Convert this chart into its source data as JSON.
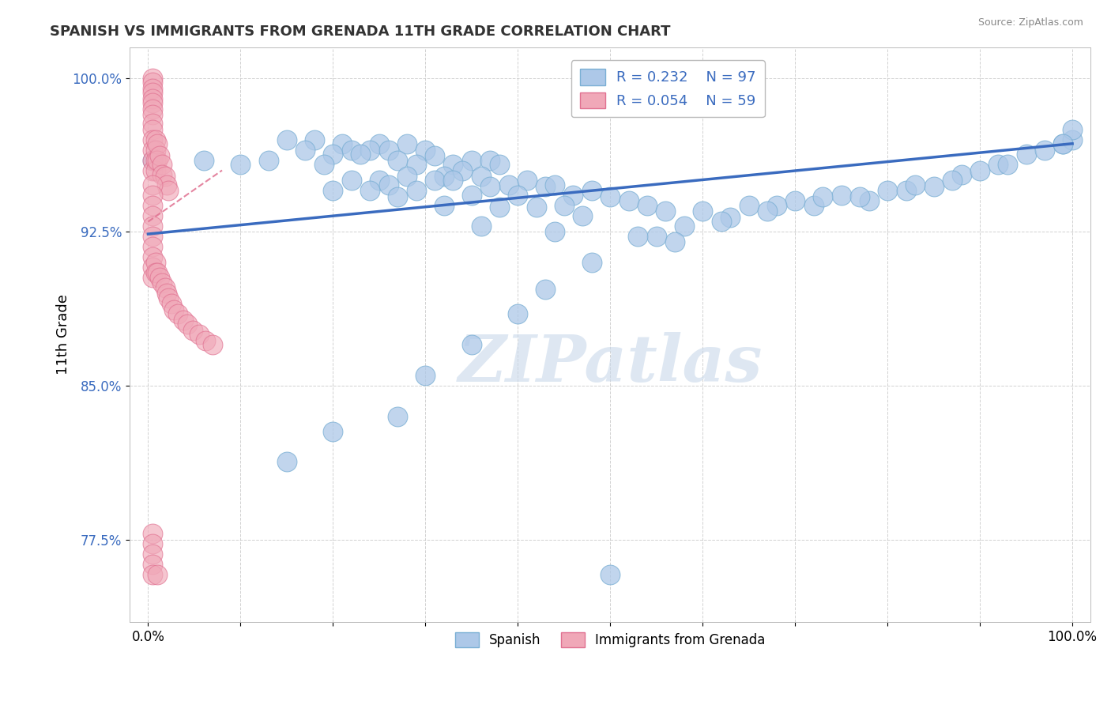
{
  "title": "SPANISH VS IMMIGRANTS FROM GRENADA 11TH GRADE CORRELATION CHART",
  "source": "Source: ZipAtlas.com",
  "ylabel": "11th Grade",
  "xlim": [
    -0.02,
    1.02
  ],
  "ylim": [
    0.735,
    1.015
  ],
  "yticks": [
    0.775,
    0.85,
    0.925,
    1.0
  ],
  "ytick_labels": [
    "77.5%",
    "85.0%",
    "92.5%",
    "100.0%"
  ],
  "xtick_labels": [
    "0.0%",
    "",
    "",
    "",
    "",
    "",
    "",
    "",
    "",
    "",
    "100.0%"
  ],
  "blue_color": "#adc8e8",
  "blue_edge": "#7aafd4",
  "pink_color": "#f0a8b8",
  "pink_edge": "#e07090",
  "trend_blue_color": "#3a6bbf",
  "trend_pink_color": "#e07090",
  "legend_text_color": "#3a6bbf",
  "watermark_color": "#c8d8ea",
  "blue_R": "R = 0.232",
  "blue_N": "N = 97",
  "pink_R": "R = 0.054",
  "pink_N": "N = 59",
  "blue_x": [
    0.005,
    0.18,
    0.06,
    0.25,
    0.21,
    0.15,
    0.22,
    0.13,
    0.17,
    0.2,
    0.28,
    0.24,
    0.19,
    0.23,
    0.26,
    0.1,
    0.3,
    0.27,
    0.31,
    0.33,
    0.29,
    0.35,
    0.22,
    0.37,
    0.32,
    0.25,
    0.28,
    0.34,
    0.38,
    0.2,
    0.26,
    0.31,
    0.24,
    0.36,
    0.29,
    0.33,
    0.27,
    0.39,
    0.41,
    0.35,
    0.37,
    0.32,
    0.43,
    0.4,
    0.44,
    0.38,
    0.46,
    0.42,
    0.48,
    0.5,
    0.45,
    0.52,
    0.47,
    0.54,
    0.56,
    0.6,
    0.65,
    0.7,
    0.75,
    0.72,
    0.8,
    0.82,
    0.85,
    0.78,
    0.88,
    0.9,
    0.92,
    0.95,
    0.97,
    0.99,
    1.0,
    1.0,
    0.99,
    0.68,
    0.63,
    0.58,
    0.55,
    0.53,
    0.62,
    0.67,
    0.73,
    0.77,
    0.83,
    0.87,
    0.93,
    0.57,
    0.48,
    0.43,
    0.4,
    0.35,
    0.3,
    0.2,
    0.15,
    0.36,
    0.5,
    0.44,
    0.27
  ],
  "blue_y": [
    0.96,
    0.97,
    0.96,
    0.968,
    0.968,
    0.97,
    0.965,
    0.96,
    0.965,
    0.963,
    0.968,
    0.965,
    0.958,
    0.963,
    0.965,
    0.958,
    0.965,
    0.96,
    0.962,
    0.958,
    0.958,
    0.96,
    0.95,
    0.96,
    0.952,
    0.95,
    0.952,
    0.955,
    0.958,
    0.945,
    0.948,
    0.95,
    0.945,
    0.952,
    0.945,
    0.95,
    0.942,
    0.948,
    0.95,
    0.943,
    0.947,
    0.938,
    0.947,
    0.943,
    0.948,
    0.937,
    0.943,
    0.937,
    0.945,
    0.942,
    0.938,
    0.94,
    0.933,
    0.938,
    0.935,
    0.935,
    0.938,
    0.94,
    0.943,
    0.938,
    0.945,
    0.945,
    0.947,
    0.94,
    0.953,
    0.955,
    0.958,
    0.963,
    0.965,
    0.968,
    0.97,
    0.975,
    0.968,
    0.938,
    0.932,
    0.928,
    0.923,
    0.923,
    0.93,
    0.935,
    0.942,
    0.942,
    0.948,
    0.95,
    0.958,
    0.92,
    0.91,
    0.897,
    0.885,
    0.87,
    0.855,
    0.828,
    0.813,
    0.928,
    0.758,
    0.925,
    0.835
  ],
  "pink_x": [
    0.005,
    0.005,
    0.005,
    0.005,
    0.005,
    0.005,
    0.005,
    0.005,
    0.005,
    0.005,
    0.005,
    0.005,
    0.005,
    0.005,
    0.008,
    0.008,
    0.008,
    0.008,
    0.01,
    0.01,
    0.012,
    0.015,
    0.015,
    0.018,
    0.02,
    0.022,
    0.005,
    0.005,
    0.005,
    0.005,
    0.005,
    0.005,
    0.005,
    0.005,
    0.005,
    0.005,
    0.008,
    0.008,
    0.01,
    0.012,
    0.015,
    0.018,
    0.02,
    0.022,
    0.025,
    0.028,
    0.032,
    0.038,
    0.042,
    0.048,
    0.055,
    0.062,
    0.07,
    0.005,
    0.005,
    0.005,
    0.005,
    0.005,
    0.01
  ],
  "pink_y": [
    1.0,
    0.998,
    0.995,
    0.993,
    0.99,
    0.988,
    0.985,
    0.982,
    0.978,
    0.975,
    0.97,
    0.965,
    0.96,
    0.955,
    0.97,
    0.965,
    0.96,
    0.955,
    0.968,
    0.96,
    0.962,
    0.958,
    0.953,
    0.952,
    0.948,
    0.945,
    0.948,
    0.943,
    0.938,
    0.933,
    0.928,
    0.923,
    0.918,
    0.913,
    0.908,
    0.903,
    0.91,
    0.905,
    0.905,
    0.903,
    0.9,
    0.898,
    0.895,
    0.893,
    0.89,
    0.887,
    0.885,
    0.882,
    0.88,
    0.877,
    0.875,
    0.872,
    0.87,
    0.778,
    0.773,
    0.768,
    0.763,
    0.758,
    0.758
  ],
  "blue_trend_x": [
    0.0,
    1.0
  ],
  "blue_trend_y": [
    0.924,
    0.968
  ],
  "pink_trend_x": [
    0.0,
    0.08
  ],
  "pink_trend_y": [
    0.93,
    0.955
  ]
}
